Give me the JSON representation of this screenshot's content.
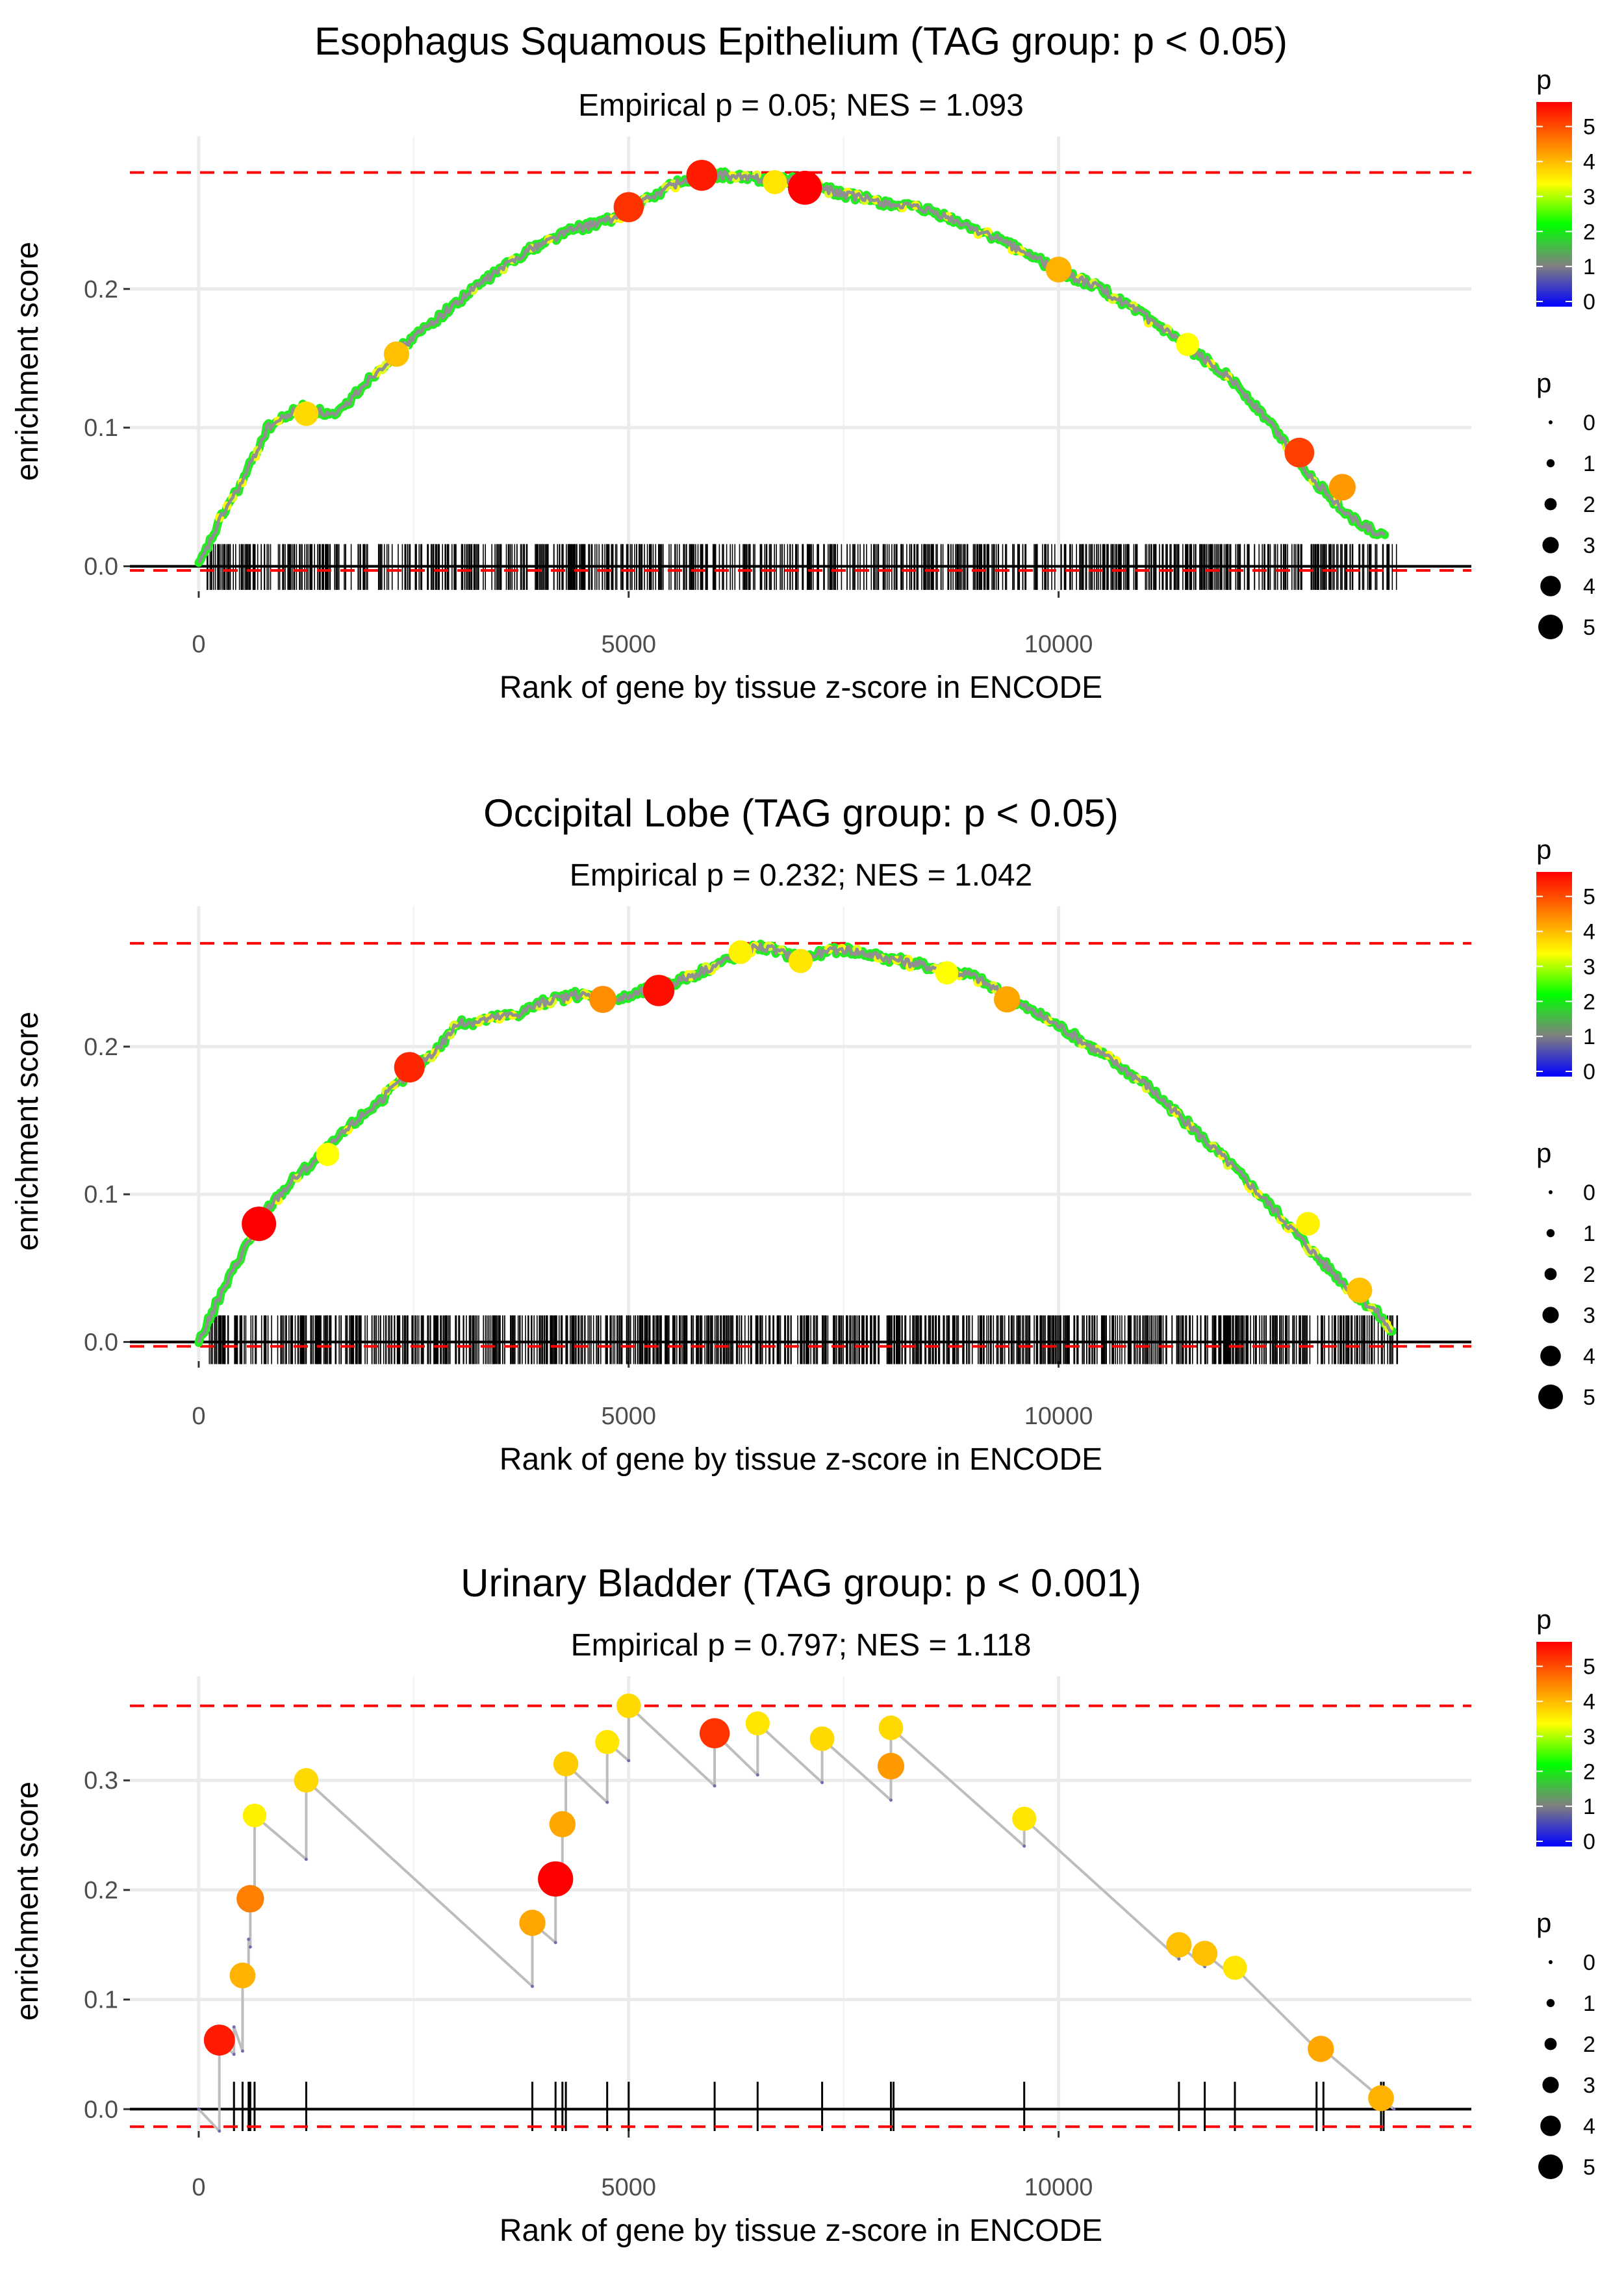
{
  "legend": {
    "color_title": "p",
    "size_title": "p",
    "color_ticks": [
      0,
      1,
      2,
      3,
      4,
      5
    ],
    "size_ticks": [
      0,
      1,
      2,
      3,
      4,
      5
    ],
    "gradient_colors": [
      "#0000ff",
      "#808080",
      "#00ff00",
      "#ffff00",
      "#ff8000",
      "#ff0000"
    ]
  },
  "chart_data": [
    {
      "type": "line",
      "title": "Esophagus Squamous Epithelium (TAG group: p < 0.05)",
      "subtitle": "Empirical p = 0.05; NES = 1.093",
      "xlabel": "Rank of gene by tissue z-score in ENCODE",
      "ylabel": "enrichment score",
      "xlim": [
        -800,
        14800
      ],
      "ylim": [
        -0.018,
        0.31
      ],
      "x_ticks": [
        0,
        5000,
        10000
      ],
      "x_tick_labels": [
        "0",
        "5000",
        "10000"
      ],
      "y_ticks": [
        0.0,
        0.1,
        0.2
      ],
      "y_tick_labels": [
        "0.0",
        "0.1",
        "0.2"
      ],
      "hlines": [
        0.284,
        -0.003
      ],
      "curve": [
        [
          0,
          0.0
        ],
        [
          300,
          0.04
        ],
        [
          500,
          0.06
        ],
        [
          800,
          0.1
        ],
        [
          1200,
          0.115
        ],
        [
          1600,
          0.108
        ],
        [
          1900,
          0.13
        ],
        [
          2300,
          0.155
        ],
        [
          2800,
          0.18
        ],
        [
          3300,
          0.205
        ],
        [
          3800,
          0.227
        ],
        [
          4300,
          0.242
        ],
        [
          4800,
          0.25
        ],
        [
          5100,
          0.26
        ],
        [
          5500,
          0.275
        ],
        [
          5900,
          0.283
        ],
        [
          6400,
          0.28
        ],
        [
          7000,
          0.278
        ],
        [
          7500,
          0.268
        ],
        [
          8000,
          0.262
        ],
        [
          8500,
          0.256
        ],
        [
          9000,
          0.244
        ],
        [
          9500,
          0.23
        ],
        [
          10000,
          0.213
        ],
        [
          10500,
          0.2
        ],
        [
          11000,
          0.18
        ],
        [
          11500,
          0.158
        ],
        [
          12000,
          0.136
        ],
        [
          12500,
          0.1
        ],
        [
          13000,
          0.06
        ],
        [
          13400,
          0.035
        ],
        [
          13800,
          0.02
        ]
      ],
      "highlight_points": [
        {
          "x": 5000,
          "y": 0.259,
          "p": 4.6
        },
        {
          "x": 5850,
          "y": 0.282,
          "p": 4.8
        },
        {
          "x": 7050,
          "y": 0.273,
          "p": 5.5
        },
        {
          "x": 10000,
          "y": 0.214,
          "p": 3.6
        },
        {
          "x": 12800,
          "y": 0.082,
          "p": 4.5
        },
        {
          "x": 13300,
          "y": 0.057,
          "p": 3.8
        },
        {
          "x": 2300,
          "y": 0.153,
          "p": 3.5
        },
        {
          "x": 1250,
          "y": 0.11,
          "p": 3.3
        },
        {
          "x": 6700,
          "y": 0.277,
          "p": 3.2
        },
        {
          "x": 11500,
          "y": 0.16,
          "p": 3.0
        }
      ],
      "rug": {
        "start": 60,
        "end": 13950,
        "count": 820,
        "seed": 11,
        "top": 0.016,
        "bottom": -0.017
      }
    },
    {
      "type": "line",
      "title": "Occipital Lobe (TAG group: p < 0.05)",
      "subtitle": "Empirical p = 0.232; NES = 1.042",
      "xlabel": "Rank of gene by tissue z-score in ENCODE",
      "ylabel": "enrichment score",
      "xlim": [
        -800,
        14800
      ],
      "ylim": [
        -0.013,
        0.295
      ],
      "x_ticks": [
        0,
        5000,
        10000
      ],
      "x_tick_labels": [
        "0",
        "5000",
        "10000"
      ],
      "y_ticks": [
        0.0,
        0.1,
        0.2
      ],
      "y_tick_labels": [
        "0.0",
        "0.1",
        "0.2"
      ],
      "hlines": [
        0.27,
        -0.003
      ],
      "curve": [
        [
          0,
          0.0
        ],
        [
          200,
          0.025
        ],
        [
          500,
          0.06
        ],
        [
          800,
          0.09
        ],
        [
          1100,
          0.11
        ],
        [
          1400,
          0.125
        ],
        [
          1800,
          0.148
        ],
        [
          2200,
          0.168
        ],
        [
          2500,
          0.185
        ],
        [
          2800,
          0.2
        ],
        [
          3000,
          0.215
        ],
        [
          3300,
          0.218
        ],
        [
          3700,
          0.222
        ],
        [
          4000,
          0.23
        ],
        [
          4400,
          0.235
        ],
        [
          4900,
          0.232
        ],
        [
          5300,
          0.24
        ],
        [
          5600,
          0.245
        ],
        [
          6000,
          0.255
        ],
        [
          6500,
          0.268
        ],
        [
          7000,
          0.26
        ],
        [
          7500,
          0.266
        ],
        [
          8000,
          0.26
        ],
        [
          8500,
          0.254
        ],
        [
          9000,
          0.248
        ],
        [
          9500,
          0.23
        ],
        [
          10000,
          0.214
        ],
        [
          10500,
          0.195
        ],
        [
          11000,
          0.175
        ],
        [
          11500,
          0.148
        ],
        [
          12000,
          0.12
        ],
        [
          12500,
          0.09
        ],
        [
          13000,
          0.058
        ],
        [
          13400,
          0.035
        ],
        [
          13700,
          0.02
        ],
        [
          13900,
          0.005
        ]
      ],
      "highlight_points": [
        {
          "x": 700,
          "y": 0.08,
          "p": 5.6
        },
        {
          "x": 2450,
          "y": 0.186,
          "p": 4.7
        },
        {
          "x": 5350,
          "y": 0.238,
          "p": 4.9
        },
        {
          "x": 4700,
          "y": 0.232,
          "p": 3.9
        },
        {
          "x": 9400,
          "y": 0.232,
          "p": 3.7
        },
        {
          "x": 7000,
          "y": 0.258,
          "p": 3.2
        },
        {
          "x": 6300,
          "y": 0.264,
          "p": 3.1
        },
        {
          "x": 12900,
          "y": 0.08,
          "p": 3.1
        },
        {
          "x": 13500,
          "y": 0.035,
          "p": 3.5
        },
        {
          "x": 1500,
          "y": 0.127,
          "p": 3.0
        },
        {
          "x": 8700,
          "y": 0.25,
          "p": 3.0
        }
      ],
      "rug": {
        "start": 100,
        "end": 13950,
        "count": 980,
        "seed": 23,
        "top": 0.018,
        "bottom": -0.015
      }
    },
    {
      "type": "line",
      "title": "Urinary Bladder (TAG group: p < 0.001)",
      "subtitle": "Empirical p = 0.797; NES = 1.118",
      "xlabel": "Rank of gene by tissue z-score in ENCODE",
      "ylabel": "enrichment score",
      "xlim": [
        -800,
        14800
      ],
      "ylim": [
        -0.02,
        0.395
      ],
      "x_ticks": [
        0,
        5000,
        10000
      ],
      "x_tick_labels": [
        "0",
        "5000",
        "10000"
      ],
      "y_ticks": [
        0.0,
        0.1,
        0.2,
        0.3
      ],
      "y_tick_labels": [
        "0.0",
        "0.1",
        "0.2",
        "0.3"
      ],
      "hlines": [
        0.368,
        -0.016
      ],
      "curve": [
        [
          0,
          0
        ],
        [
          240,
          -0.02
        ],
        [
          240,
          0.063
        ],
        [
          410,
          0.05
        ],
        [
          410,
          0.075
        ],
        [
          510,
          0.053
        ],
        [
          510,
          0.122
        ],
        [
          580,
          0.115
        ],
        [
          580,
          0.155
        ],
        [
          600,
          0.148
        ],
        [
          600,
          0.192
        ],
        [
          650,
          0.188
        ],
        [
          650,
          0.268
        ],
        [
          1250,
          0.228
        ],
        [
          1250,
          0.3
        ],
        [
          3880,
          0.112
        ],
        [
          3880,
          0.17
        ],
        [
          4150,
          0.152
        ],
        [
          4150,
          0.21
        ],
        [
          4230,
          0.202
        ],
        [
          4230,
          0.26
        ],
        [
          4270,
          0.255
        ],
        [
          4270,
          0.315
        ],
        [
          4750,
          0.28
        ],
        [
          4750,
          0.335
        ],
        [
          5000,
          0.318
        ],
        [
          5000,
          0.368
        ],
        [
          6000,
          0.295
        ],
        [
          6000,
          0.343
        ],
        [
          6500,
          0.305
        ],
        [
          6500,
          0.352
        ],
        [
          7250,
          0.298
        ],
        [
          7250,
          0.338
        ],
        [
          8050,
          0.282
        ],
        [
          8050,
          0.313
        ],
        [
          8050,
          0.348
        ],
        [
          9600,
          0.24
        ],
        [
          9600,
          0.265
        ],
        [
          11400,
          0.137
        ],
        [
          11400,
          0.15
        ],
        [
          11700,
          0.13
        ],
        [
          11700,
          0.142
        ],
        [
          12050,
          0.12
        ],
        [
          12050,
          0.129
        ],
        [
          13000,
          0.055
        ],
        [
          13100,
          0.053
        ],
        [
          13750,
          0.01
        ],
        [
          13900,
          0.0
        ]
      ],
      "highlight_points": [
        {
          "x": 240,
          "y": 0.063,
          "p": 4.8
        },
        {
          "x": 510,
          "y": 0.122,
          "p": 3.6
        },
        {
          "x": 600,
          "y": 0.192,
          "p": 4.0
        },
        {
          "x": 650,
          "y": 0.268,
          "p": 3.1
        },
        {
          "x": 1250,
          "y": 0.3,
          "p": 3.3
        },
        {
          "x": 3880,
          "y": 0.17,
          "p": 3.7
        },
        {
          "x": 4150,
          "y": 0.21,
          "p": 5.8
        },
        {
          "x": 4230,
          "y": 0.26,
          "p": 3.7
        },
        {
          "x": 4270,
          "y": 0.315,
          "p": 3.4
        },
        {
          "x": 4750,
          "y": 0.335,
          "p": 3.2
        },
        {
          "x": 5000,
          "y": 0.368,
          "p": 3.3
        },
        {
          "x": 6000,
          "y": 0.343,
          "p": 4.6
        },
        {
          "x": 6500,
          "y": 0.352,
          "p": 3.2
        },
        {
          "x": 7250,
          "y": 0.338,
          "p": 3.3
        },
        {
          "x": 8050,
          "y": 0.348,
          "p": 3.3
        },
        {
          "x": 8050,
          "y": 0.313,
          "p": 3.8
        },
        {
          "x": 9600,
          "y": 0.265,
          "p": 3.2
        },
        {
          "x": 11400,
          "y": 0.15,
          "p": 3.5
        },
        {
          "x": 11700,
          "y": 0.142,
          "p": 3.5
        },
        {
          "x": 12050,
          "y": 0.129,
          "p": 3.2
        },
        {
          "x": 13050,
          "y": 0.055,
          "p": 3.7
        },
        {
          "x": 13750,
          "y": 0.01,
          "p": 3.6
        }
      ],
      "rug_positions": [
        240,
        410,
        510,
        580,
        600,
        650,
        1250,
        3880,
        4150,
        4230,
        4270,
        4750,
        5000,
        6000,
        6500,
        7250,
        8050,
        8080,
        9600,
        11400,
        11700,
        12050,
        13000,
        13080,
        13750,
        13780
      ],
      "rug": {
        "top": 0.025,
        "bottom": -0.02
      }
    }
  ]
}
